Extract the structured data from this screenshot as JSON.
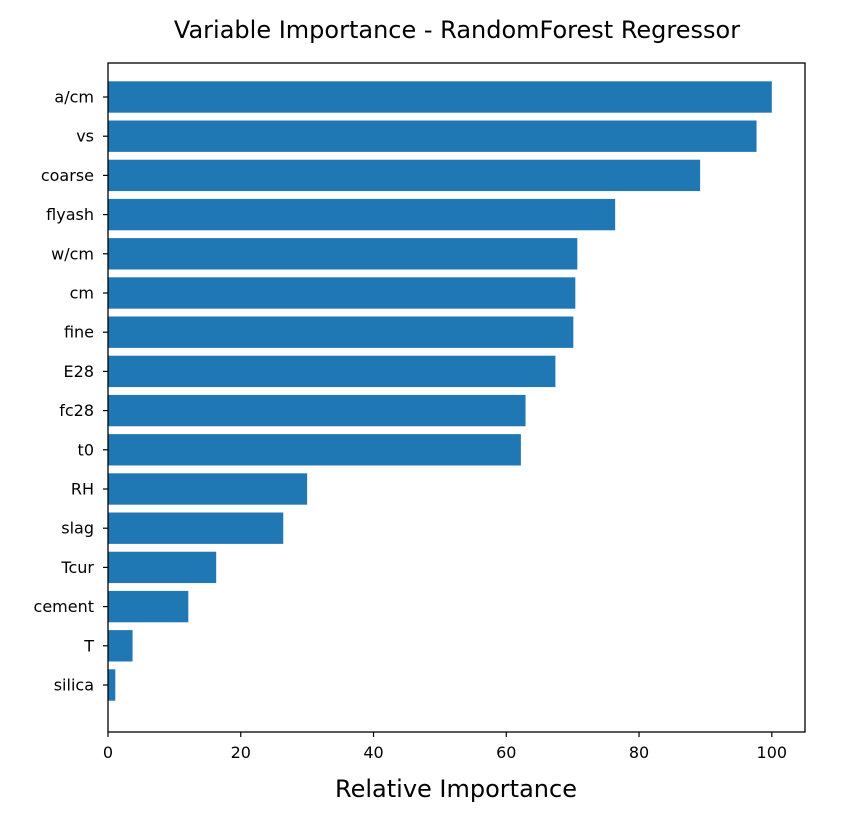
{
  "chart_data": {
    "type": "bar",
    "orientation": "horizontal",
    "title": "Variable Importance - RandomForest Regressor",
    "xlabel": "Relative Importance",
    "ylabel": "",
    "xlim": [
      0,
      105
    ],
    "xticks": [
      0,
      20,
      40,
      60,
      80,
      100
    ],
    "grid": false,
    "legend": "none",
    "bar_color": "#1f77b4",
    "categories": [
      "a/cm",
      "vs",
      "coarse",
      "flyash",
      "w/cm",
      "cm",
      "fine",
      "E28",
      "fc28",
      "t0",
      "RH",
      "slag",
      "Tcur",
      "cement",
      "T",
      "silica"
    ],
    "values": [
      100,
      97.7,
      89.2,
      76.4,
      70.7,
      70.4,
      70.1,
      67.4,
      62.9,
      62.2,
      30.0,
      26.4,
      16.3,
      12.1,
      3.7,
      1.1
    ]
  }
}
